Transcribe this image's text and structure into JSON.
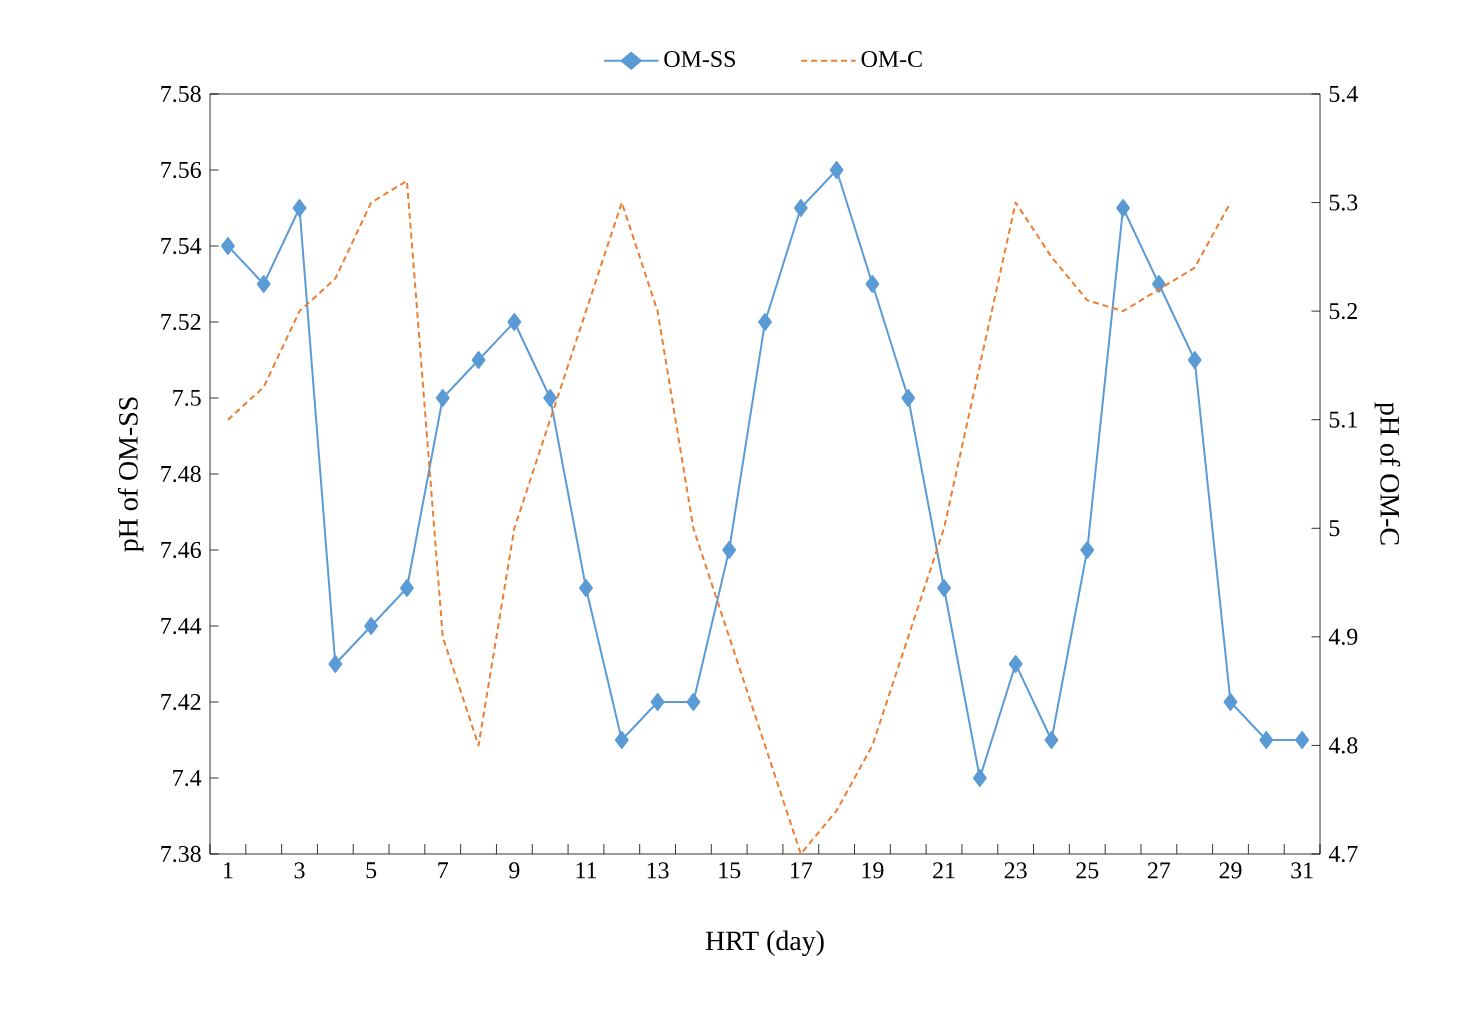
{
  "chart_data": {
    "type": "line",
    "xlabel": "HRT (day)",
    "ylabel": "pH of OM-SS",
    "y2label": "pH of OM-C",
    "categories": [
      "1",
      null,
      "3",
      null,
      "5",
      null,
      "7",
      null,
      "9",
      null,
      "11",
      null,
      "13",
      null,
      "15",
      null,
      "17",
      null,
      "19",
      null,
      "21",
      null,
      "23",
      null,
      "25",
      null,
      "27",
      null,
      "29",
      null,
      "31"
    ],
    "ylim": [
      7.38,
      7.58
    ],
    "yticks": [
      7.38,
      7.4,
      7.42,
      7.44,
      7.46,
      7.48,
      7.5,
      7.52,
      7.54,
      7.56,
      7.58
    ],
    "y2lim": [
      4.7,
      5.4
    ],
    "y2ticks": [
      4.7,
      4.8,
      4.9,
      5,
      5.1,
      5.2,
      5.3,
      5.4
    ],
    "legend": "top",
    "series": [
      {
        "name": "OM-SS",
        "color": "#5b9bd5",
        "marker": "diamond",
        "line_style": "solid",
        "values": [
          7.54,
          7.53,
          7.55,
          7.43,
          7.44,
          7.45,
          7.5,
          7.51,
          7.52,
          7.5,
          7.45,
          7.41,
          7.42,
          7.42,
          7.46,
          7.52,
          7.55,
          7.56,
          7.53,
          7.5,
          7.45,
          7.4,
          7.43,
          7.41,
          7.46,
          7.55,
          7.53,
          7.51,
          7.42,
          7.41,
          7.41
        ]
      },
      {
        "name": "OM-C",
        "color": "#ed7d31",
        "marker": "none",
        "line_style": "dashed",
        "axis": "y2",
        "values": [
          5.1,
          5.13,
          5.2,
          5.23,
          5.3,
          5.32,
          4.9,
          4.8,
          5.0,
          5.1,
          5.2,
          5.3,
          5.2,
          5.0,
          4.9,
          4.8,
          4.7,
          4.74,
          4.8,
          4.9,
          5.0,
          5.15,
          5.3,
          5.25,
          5.21,
          5.2,
          5.22,
          5.24,
          5.3,
          null,
          null
        ]
      }
    ]
  }
}
